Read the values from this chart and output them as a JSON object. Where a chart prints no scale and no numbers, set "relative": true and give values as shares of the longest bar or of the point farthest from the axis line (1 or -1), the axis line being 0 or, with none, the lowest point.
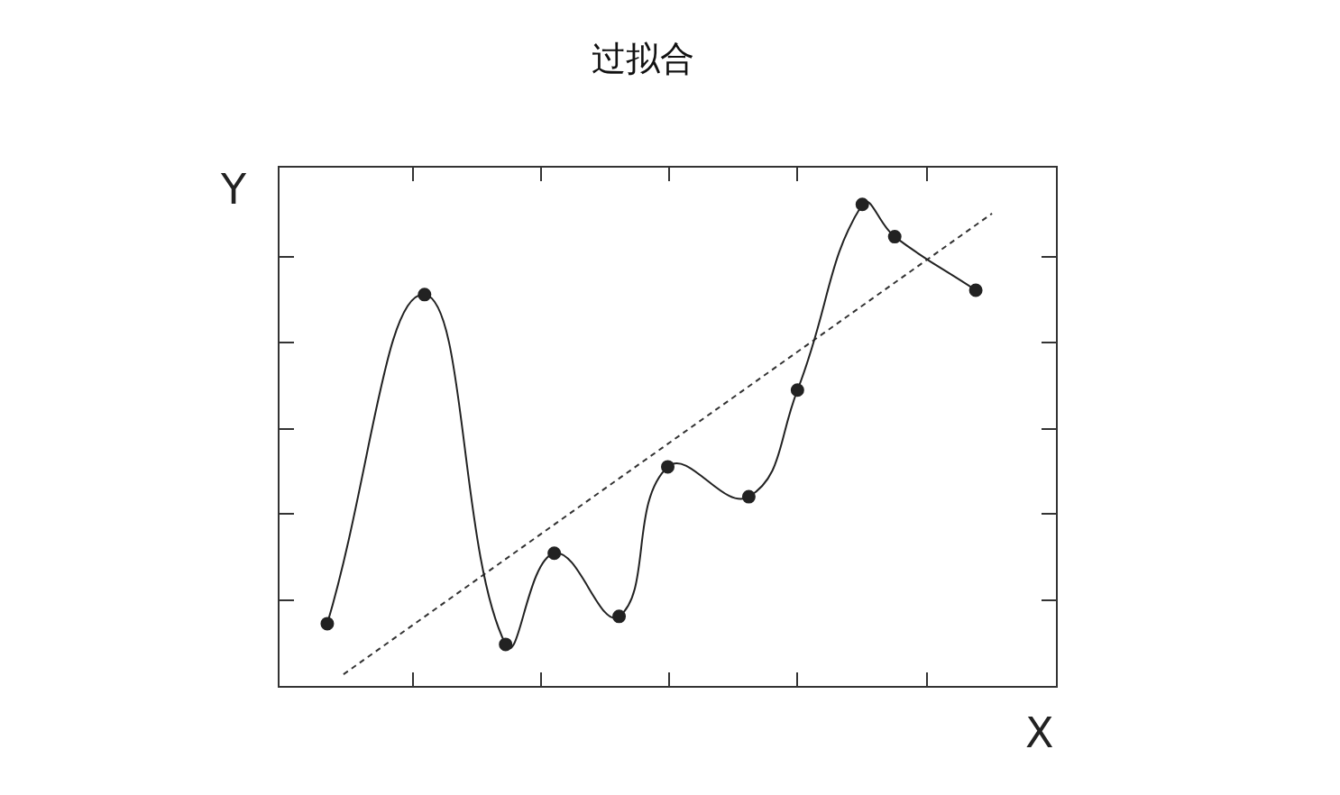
{
  "chart_data": {
    "type": "line",
    "title": "过拟合",
    "xlabel": "X",
    "ylabel": "Y",
    "relative": true,
    "legend": false,
    "tick_labels": false,
    "categories": [
      null,
      null,
      null,
      null,
      null,
      null,
      null,
      null,
      null,
      null,
      null,
      null,
      null,
      null,
      null,
      null,
      null,
      null,
      null,
      null,
      null,
      null,
      null,
      null,
      null,
      null,
      null,
      null,
      null,
      null,
      null,
      null,
      null,
      null,
      null,
      null,
      null,
      null,
      null,
      null,
      null,
      null,
      null,
      null,
      null,
      null,
      null,
      null,
      null
    ],
    "series": [
      {
        "color": "#222222",
        "marker": "circle",
        "line_style": "solid",
        "values": [
          null,
          null,
          null,
          0.131,
          null,
          null,
          null,
          null,
          null,
          0.813,
          null,
          null,
          null,
          null,
          0.088,
          null,
          null,
          0.277,
          null,
          null,
          null,
          0.146,
          null,
          null,
          0.456,
          null,
          null,
          null,
          null,
          0.394,
          null,
          null,
          0.615,
          null,
          null,
          null,
          1,
          null,
          0.933,
          null,
          null,
          null,
          null,
          0.822,
          null,
          null,
          null,
          null,
          null
        ]
      },
      {
        "color": "#333333",
        "marker": "none",
        "line_style": "dashed",
        "values": [
          null,
          null,
          null,
          null,
          0.026,
          null,
          null,
          null,
          null,
          null,
          null,
          null,
          null,
          null,
          null,
          null,
          null,
          null,
          null,
          null,
          null,
          null,
          null,
          null,
          null,
          null,
          null,
          null,
          null,
          null,
          null,
          null,
          null,
          null,
          null,
          null,
          null,
          null,
          null,
          null,
          null,
          null,
          null,
          null,
          0.981,
          null,
          null,
          null,
          null
        ]
      }
    ]
  }
}
